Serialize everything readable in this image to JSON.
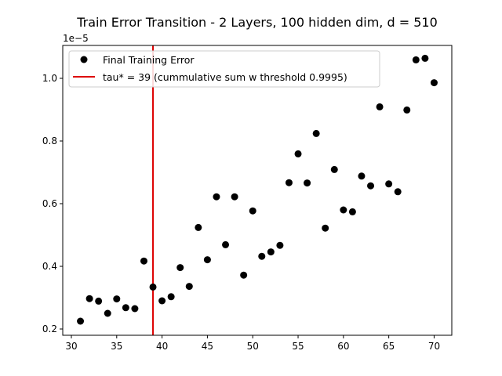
{
  "chart_data": {
    "type": "scatter",
    "title": "Train Error Transition - 2 Layers, 100 hidden dim, d = 510",
    "xlabel": "",
    "ylabel": "",
    "y_offset_label": "1e−5",
    "xlim": [
      29.05,
      71.95
    ],
    "ylim": [
      0.18,
      1.105
    ],
    "x_ticks": [
      30,
      35,
      40,
      45,
      50,
      55,
      60,
      65,
      70
    ],
    "x_tick_labels": [
      "30",
      "35",
      "40",
      "45",
      "50",
      "55",
      "60",
      "65",
      "70"
    ],
    "y_ticks": [
      0.2,
      0.4,
      0.6,
      0.8,
      1.0
    ],
    "y_tick_labels": [
      "0.2",
      "0.4",
      "0.6",
      "0.8",
      "1.0"
    ],
    "grid": false,
    "legend_position": "upper-left",
    "series": [
      {
        "name": "Final Training Error",
        "kind": "scatter",
        "color": "#000000",
        "x": [
          31,
          32,
          33,
          34,
          35,
          36,
          37,
          38,
          39,
          40,
          41,
          42,
          43,
          44,
          45,
          46,
          47,
          48,
          49,
          50,
          51,
          52,
          53,
          54,
          55,
          56,
          57,
          58,
          59,
          60,
          61,
          62,
          63,
          64,
          65,
          66,
          67,
          68,
          69,
          70
        ],
        "y": [
          0.225,
          0.297,
          0.289,
          0.25,
          0.296,
          0.268,
          0.265,
          0.417,
          0.334,
          0.29,
          0.303,
          0.396,
          0.336,
          0.524,
          0.421,
          0.622,
          0.469,
          0.622,
          0.372,
          0.577,
          0.432,
          0.446,
          0.467,
          0.667,
          0.759,
          0.666,
          0.824,
          0.522,
          0.709,
          0.58,
          0.574,
          0.688,
          0.657,
          0.909,
          0.663,
          0.638,
          0.899,
          1.059,
          1.064,
          0.986
        ]
      },
      {
        "name": "tau* = 39 (cummulative sum w threshold 0.9995)",
        "kind": "vline",
        "color": "#dd0000",
        "x": 39
      }
    ]
  }
}
